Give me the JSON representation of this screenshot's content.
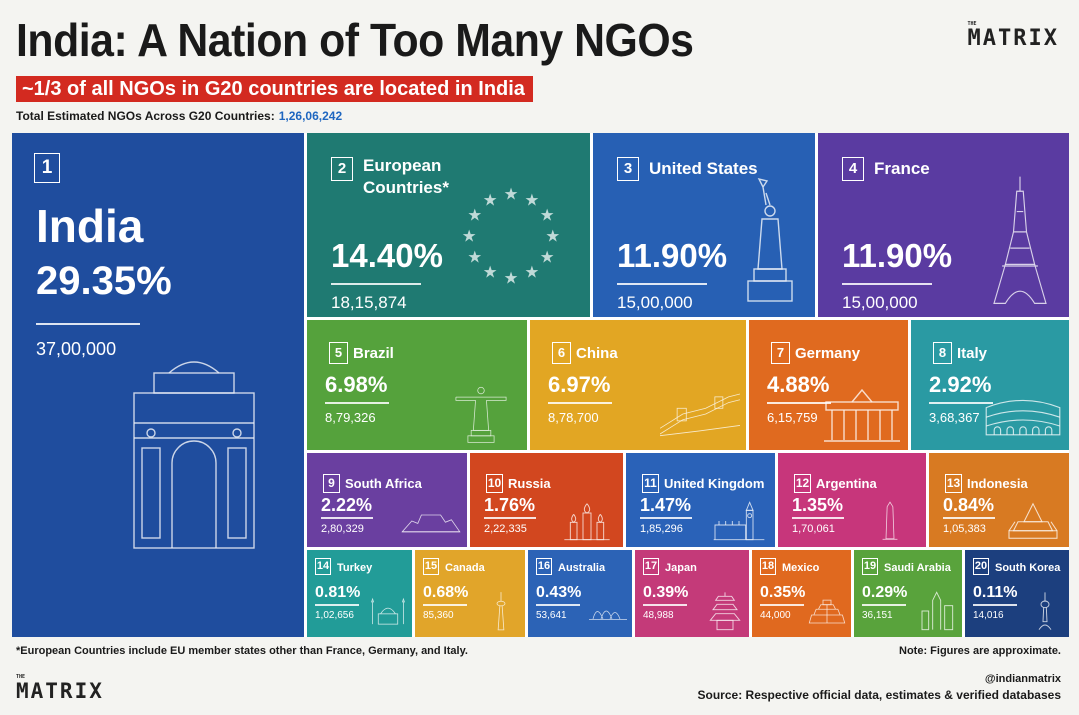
{
  "header": {
    "title": "India: A Nation of Too Many NGOs",
    "subtitle": "~1/3 of all NGOs in G20 countries are located in India",
    "total_label": "Total Estimated NGOs Across G20 Countries:",
    "total_value": "1,26,06,242"
  },
  "brand": {
    "small": "THE",
    "name": "MATRIX"
  },
  "footer": {
    "footnote": "*European Countries include EU member states other than France, Germany, and Italy.",
    "note": "Note: Figures are approximate.",
    "handle": "@indianmatrix",
    "source": "Source: Respective official data, estimates & verified databases"
  },
  "chart_data": {
    "type": "treemap",
    "items": [
      {
        "rank": "1",
        "name": "India",
        "percent": "29.35%",
        "count": "37,00,000",
        "value": 29.35,
        "color": "#1f4d9e",
        "icon": "india-gate-icon"
      },
      {
        "rank": "2",
        "name": "European Countries*",
        "percent": "14.40%",
        "count": "18,15,874",
        "value": 14.4,
        "color": "#1f7a72",
        "icon": "eu-stars-icon"
      },
      {
        "rank": "3",
        "name": "United States",
        "percent": "11.90%",
        "count": "15,00,000",
        "value": 11.9,
        "color": "#2760b4",
        "icon": "statue-of-liberty-icon"
      },
      {
        "rank": "4",
        "name": "France",
        "percent": "11.90%",
        "count": "15,00,000",
        "value": 11.9,
        "color": "#5a3ba1",
        "icon": "eiffel-tower-icon"
      },
      {
        "rank": "5",
        "name": "Brazil",
        "percent": "6.98%",
        "count": "8,79,326",
        "value": 6.98,
        "color": "#55a23c",
        "icon": "christ-redeemer-icon"
      },
      {
        "rank": "6",
        "name": "China",
        "percent": "6.97%",
        "count": "8,78,700",
        "value": 6.97,
        "color": "#e2a623",
        "icon": "great-wall-icon"
      },
      {
        "rank": "7",
        "name": "Germany",
        "percent": "4.88%",
        "count": "6,15,759",
        "value": 4.88,
        "color": "#e06a1f",
        "icon": "brandenburg-gate-icon"
      },
      {
        "rank": "8",
        "name": "Italy",
        "percent": "2.92%",
        "count": "3,68,367",
        "value": 2.92,
        "color": "#2a9aa3",
        "icon": "colosseum-icon"
      },
      {
        "rank": "9",
        "name": "South Africa",
        "percent": "2.22%",
        "count": "2,80,329",
        "value": 2.22,
        "color": "#6a3fa0",
        "icon": "table-mountain-icon"
      },
      {
        "rank": "10",
        "name": "Russia",
        "percent": "1.76%",
        "count": "2,22,335",
        "value": 1.76,
        "color": "#d2471f",
        "icon": "st-basil-icon"
      },
      {
        "rank": "11",
        "name": "United Kingdom",
        "percent": "1.47%",
        "count": "1,85,296",
        "value": 1.47,
        "color": "#2a62b8",
        "icon": "big-ben-icon"
      },
      {
        "rank": "12",
        "name": "Argentina",
        "percent": "1.35%",
        "count": "1,70,061",
        "value": 1.35,
        "color": "#c7367b",
        "icon": "obelisk-icon"
      },
      {
        "rank": "13",
        "name": "Indonesia",
        "percent": "0.84%",
        "count": "1,05,383",
        "value": 0.84,
        "color": "#d87a22",
        "icon": "temple-icon"
      },
      {
        "rank": "14",
        "name": "Turkey",
        "percent": "0.81%",
        "count": "1,02,656",
        "value": 0.81,
        "color": "#229c98",
        "icon": "mosque-icon"
      },
      {
        "rank": "15",
        "name": "Canada",
        "percent": "0.68%",
        "count": "85,360",
        "value": 0.68,
        "color": "#e1a52a",
        "icon": "cn-tower-icon"
      },
      {
        "rank": "16",
        "name": "Australia",
        "percent": "0.43%",
        "count": "53,641",
        "value": 0.43,
        "color": "#2c63b6",
        "icon": "opera-house-icon"
      },
      {
        "rank": "17",
        "name": "Japan",
        "percent": "0.39%",
        "count": "48,988",
        "value": 0.39,
        "color": "#c43a79",
        "icon": "pagoda-icon"
      },
      {
        "rank": "18",
        "name": "Mexico",
        "percent": "0.35%",
        "count": "44,000",
        "value": 0.35,
        "color": "#e0691f",
        "icon": "pyramid-icon"
      },
      {
        "rank": "19",
        "name": "Saudi Arabia",
        "percent": "0.29%",
        "count": "36,151",
        "value": 0.29,
        "color": "#59a33c",
        "icon": "skyline-icon"
      },
      {
        "rank": "20",
        "name": "South Korea",
        "percent": "0.11%",
        "count": "14,016",
        "value": 0.11,
        "color": "#1c3f7e",
        "icon": "seoul-tower-icon"
      }
    ]
  }
}
